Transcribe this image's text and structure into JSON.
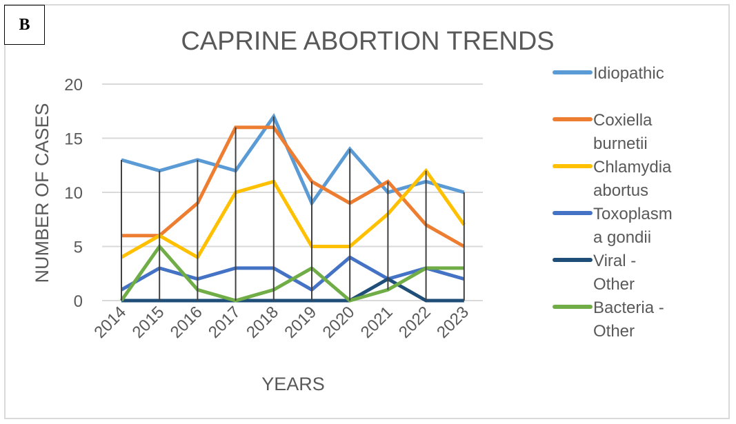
{
  "panel_label": "B",
  "chart_data": {
    "type": "line",
    "title": "CAPRINE ABORTION TRENDS",
    "xlabel": "YEARS",
    "ylabel": "NUMBER OF CASES",
    "ylim": [
      0,
      20
    ],
    "yticks": [
      0,
      5,
      10,
      15,
      20
    ],
    "grid": "horizontal",
    "high_low_lines": true,
    "legend_position": "right",
    "categories": [
      "2014",
      "2015",
      "2016",
      "2017",
      "2018",
      "2019",
      "2020",
      "2021",
      "2022",
      "2023"
    ],
    "series": [
      {
        "name": "Idiopathic",
        "legend_lines": [
          "Idiopathic"
        ],
        "color": "#5B9BD5",
        "values": [
          13,
          12,
          13,
          12,
          17,
          9,
          14,
          10,
          11,
          10
        ]
      },
      {
        "name": "Coxiella burnetii",
        "legend_lines": [
          "Coxiella",
          "burnetii"
        ],
        "color": "#ED7D31",
        "values": [
          6,
          6,
          9,
          16,
          16,
          11,
          9,
          11,
          7,
          5
        ]
      },
      {
        "name": "Chlamydia abortus",
        "legend_lines": [
          "Chlamydia",
          "abortus"
        ],
        "color": "#FFC000",
        "values": [
          4,
          6,
          4,
          10,
          11,
          5,
          5,
          8,
          12,
          7
        ]
      },
      {
        "name": "Toxoplasma gondii",
        "legend_lines": [
          "Toxoplasm",
          "a gondii"
        ],
        "color": "#4472C4",
        "values": [
          1,
          3,
          2,
          3,
          3,
          1,
          4,
          2,
          3,
          2
        ]
      },
      {
        "name": "Viral - Other",
        "legend_lines": [
          "Viral -",
          "Other"
        ],
        "color": "#1F4E79",
        "values": [
          0,
          0,
          0,
          0,
          0,
          0,
          0,
          2,
          0,
          0
        ]
      },
      {
        "name": "Bacteria - Other",
        "legend_lines": [
          "Bacteria -",
          "Other"
        ],
        "color": "#70AD47",
        "values": [
          0,
          5,
          1,
          0,
          1,
          3,
          0,
          1,
          3,
          3
        ]
      }
    ]
  }
}
